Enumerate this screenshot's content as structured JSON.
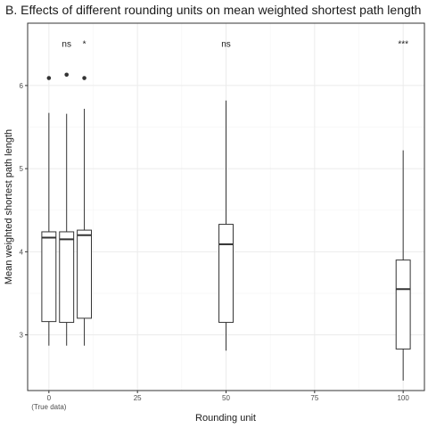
{
  "chart_data": {
    "type": "boxplot",
    "title": "B. Effects of different rounding units on mean weighted shortest path length",
    "xlabel": "Rounding unit",
    "ylabel": "Mean weighted shortest path length",
    "xlim": [
      -6,
      106
    ],
    "ylim": [
      2.33,
      6.75
    ],
    "x_ticks": [
      {
        "value": 0,
        "label": "0",
        "sublabel": "(True data)"
      },
      {
        "value": 25,
        "label": "25",
        "sublabel": ""
      },
      {
        "value": 50,
        "label": "50",
        "sublabel": ""
      },
      {
        "value": 75,
        "label": "75",
        "sublabel": ""
      },
      {
        "value": 100,
        "label": "100",
        "sublabel": ""
      }
    ],
    "y_ticks": [
      3,
      4,
      5,
      6
    ],
    "grid": true,
    "box_width": 4,
    "boxes": [
      {
        "x": 0,
        "whisker_low": 2.87,
        "q1": 3.16,
        "median": 4.17,
        "q3": 4.24,
        "whisker_high": 5.67,
        "outliers": [
          6.09
        ]
      },
      {
        "x": 5,
        "whisker_low": 2.87,
        "q1": 3.15,
        "median": 4.15,
        "q3": 4.24,
        "whisker_high": 5.66,
        "outliers": [
          6.13
        ]
      },
      {
        "x": 10,
        "whisker_low": 2.87,
        "q1": 3.2,
        "median": 4.2,
        "q3": 4.26,
        "whisker_high": 5.72,
        "outliers": [
          6.09
        ]
      },
      {
        "x": 50,
        "whisker_low": 2.81,
        "q1": 3.15,
        "median": 4.09,
        "q3": 4.33,
        "whisker_high": 5.82,
        "outliers": []
      },
      {
        "x": 100,
        "whisker_low": 2.45,
        "q1": 2.83,
        "median": 3.55,
        "q3": 3.9,
        "whisker_high": 5.22,
        "outliers": []
      }
    ],
    "significance": [
      {
        "x": 5,
        "y": 6.5,
        "label": "ns"
      },
      {
        "x": 10,
        "y": 6.5,
        "label": "*"
      },
      {
        "x": 50,
        "y": 6.5,
        "label": "ns"
      },
      {
        "x": 100,
        "y": 6.5,
        "label": "***"
      }
    ],
    "colors": {
      "background": "#ffffff",
      "panel_border": "#333333",
      "grid_major": "#ebebeb",
      "grid_minor": "#f5f5f5",
      "box_line": "#333333",
      "outlier": "#333333"
    }
  }
}
